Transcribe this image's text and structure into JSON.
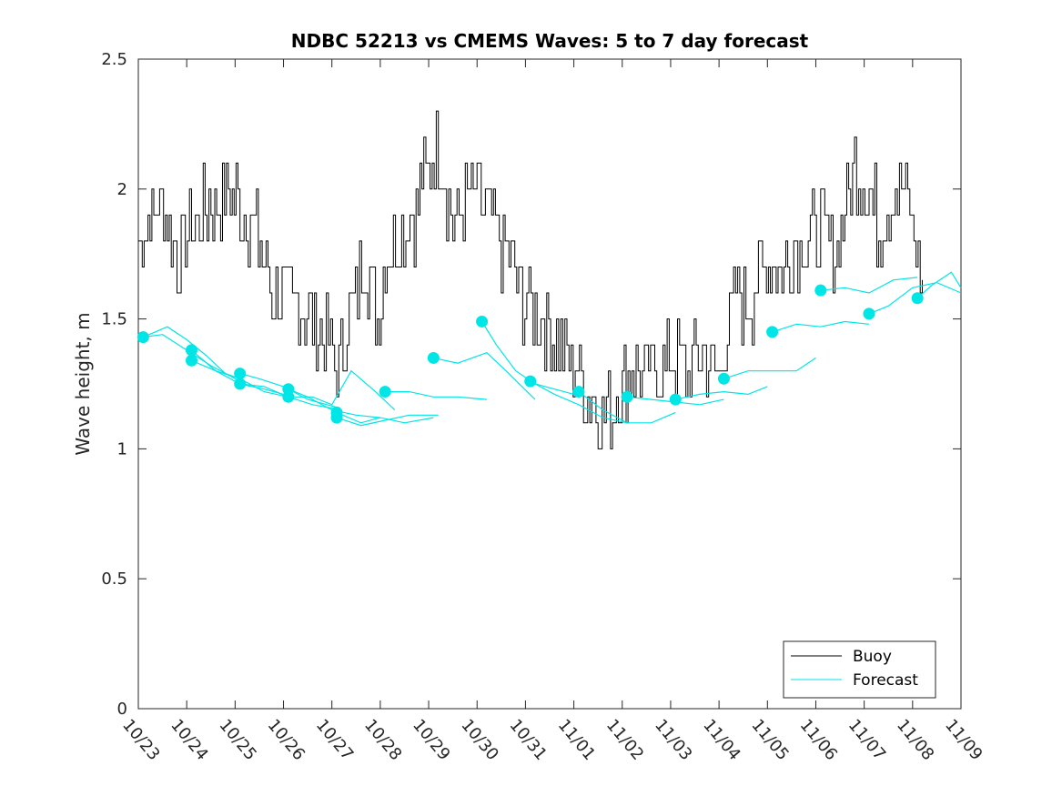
{
  "chart_data": {
    "type": "line",
    "title": "NDBC 52213 vs CMEMS Waves: 5 to 7 day forecast",
    "xlabel": "",
    "ylabel": "Wave height, m",
    "xlim": [
      0,
      17
    ],
    "ylim": [
      0,
      2.5
    ],
    "x_tick_labels": [
      "10/23",
      "10/24",
      "10/25",
      "10/26",
      "10/27",
      "10/28",
      "10/29",
      "10/30",
      "10/31",
      "11/01",
      "11/02",
      "11/03",
      "11/04",
      "11/05",
      "11/06",
      "11/07",
      "11/08",
      "11/09"
    ],
    "y_ticks": [
      0,
      0.5,
      1,
      1.5,
      2,
      2.5
    ],
    "y_tick_labels": [
      "0",
      "0.5",
      "1",
      "1.5",
      "2",
      "2.5"
    ],
    "grid": false,
    "legend": {
      "position": "bottom-right",
      "entries": [
        "Buoy",
        "Forecast"
      ]
    },
    "colors": {
      "buoy": "#000000",
      "forecast": "#00e5e5",
      "axis": "#262626"
    },
    "buoy": {
      "name": "Buoy",
      "x": [
        0,
        0.4,
        0.8,
        1.1,
        1.5,
        1.9,
        2.1,
        2.4,
        2.8,
        3.1,
        3.4,
        3.8,
        4.1,
        4.4,
        4.7,
        4.9,
        5.1,
        5.4,
        5.7,
        5.9,
        6.2,
        6.5,
        6.8,
        7.0,
        7.3,
        7.7,
        7.9,
        8.2,
        8.6,
        8.9,
        9.2,
        9.5,
        9.8,
        10.0,
        10.2,
        10.5,
        10.8,
        11.1,
        11.4,
        11.7,
        12.0,
        12.3,
        12.6,
        12.9,
        13.1,
        13.3,
        13.5,
        13.8,
        14.1,
        14.4,
        14.8,
        15.1,
        15.3,
        15.6,
        15.9,
        16.2
      ],
      "y": [
        1.8,
        1.95,
        1.75,
        1.85,
        1.95,
        2.0,
        1.95,
        1.85,
        1.6,
        1.55,
        1.55,
        1.45,
        1.3,
        1.55,
        1.75,
        1.5,
        1.7,
        1.85,
        1.9,
        2.05,
        2.15,
        1.85,
        1.95,
        2.0,
        1.85,
        1.7,
        1.6,
        1.55,
        1.45,
        1.35,
        1.25,
        1.15,
        1.15,
        1.25,
        1.3,
        1.3,
        1.3,
        1.35,
        1.3,
        1.35,
        1.3,
        1.6,
        1.55,
        1.7,
        1.75,
        1.65,
        1.8,
        1.8,
        1.85,
        1.75,
        2.1,
        2.0,
        1.85,
        2.0,
        1.95,
        1.65
      ]
    },
    "forecast": {
      "name": "Forecast",
      "runs": [
        {
          "x": [
            0.1,
            0.6,
            1.0,
            1.4,
            1.8,
            2.1
          ],
          "y": [
            1.43,
            1.47,
            1.42,
            1.36,
            1.29,
            1.27
          ]
        },
        {
          "x": [
            0.1,
            0.5,
            1.0,
            1.5,
            2.0,
            2.3
          ],
          "y": [
            1.43,
            1.44,
            1.38,
            1.32,
            1.27,
            1.24
          ]
        },
        {
          "x": [
            1.1,
            1.6,
            2.1,
            2.6,
            3.0
          ],
          "y": [
            1.38,
            1.3,
            1.25,
            1.23,
            1.21
          ]
        },
        {
          "x": [
            1.1,
            1.6,
            2.1,
            2.6,
            3.1
          ],
          "y": [
            1.34,
            1.3,
            1.27,
            1.22,
            1.2
          ]
        },
        {
          "x": [
            2.1,
            2.5,
            3.0,
            3.5,
            4.1
          ],
          "y": [
            1.29,
            1.27,
            1.24,
            1.19,
            1.16
          ]
        },
        {
          "x": [
            2.1,
            2.6,
            3.1,
            3.6,
            4.2
          ],
          "y": [
            1.25,
            1.24,
            1.2,
            1.17,
            1.15
          ]
        },
        {
          "x": [
            3.1,
            3.5,
            4.0,
            4.5,
            5.0
          ],
          "y": [
            1.23,
            1.2,
            1.15,
            1.13,
            1.12
          ]
        },
        {
          "x": [
            3.1,
            3.6,
            4.0,
            4.4,
            4.9,
            5.3
          ],
          "y": [
            1.2,
            1.2,
            1.17,
            1.3,
            1.22,
            1.15
          ]
        },
        {
          "x": [
            4.1,
            4.6,
            5.0,
            5.5,
            6.1
          ],
          "y": [
            1.14,
            1.1,
            1.12,
            1.1,
            1.12
          ]
        },
        {
          "x": [
            4.1,
            4.6,
            5.1,
            5.6,
            6.2
          ],
          "y": [
            1.12,
            1.09,
            1.11,
            1.13,
            1.13
          ]
        },
        {
          "x": [
            5.1,
            5.6,
            6.1,
            6.6,
            7.2
          ],
          "y": [
            1.22,
            1.22,
            1.2,
            1.2,
            1.19
          ]
        },
        {
          "x": [
            6.1,
            6.6,
            7.2,
            7.6,
            8.2
          ],
          "y": [
            1.35,
            1.33,
            1.37,
            1.3,
            1.19
          ]
        },
        {
          "x": [
            7.1,
            7.4,
            7.8,
            8.2,
            9.0
          ],
          "y": [
            1.49,
            1.4,
            1.3,
            1.25,
            1.21
          ]
        },
        {
          "x": [
            8.1,
            8.6,
            9.1,
            9.6,
            10.1
          ],
          "y": [
            1.26,
            1.21,
            1.17,
            1.12,
            1.1
          ]
        },
        {
          "x": [
            9.1,
            9.6,
            10.1,
            10.6,
            11.1
          ],
          "y": [
            1.22,
            1.15,
            1.1,
            1.1,
            1.14
          ]
        },
        {
          "x": [
            10.1,
            10.6,
            11.1,
            11.6,
            12.1
          ],
          "y": [
            1.2,
            1.19,
            1.18,
            1.17,
            1.19
          ]
        },
        {
          "x": [
            11.1,
            11.6,
            12.1,
            12.6,
            13.0
          ],
          "y": [
            1.19,
            1.21,
            1.22,
            1.21,
            1.24
          ]
        },
        {
          "x": [
            12.1,
            12.6,
            13.1,
            13.6,
            14.0
          ],
          "y": [
            1.27,
            1.3,
            1.3,
            1.3,
            1.35
          ]
        },
        {
          "x": [
            13.1,
            13.6,
            14.1,
            14.6,
            15.1
          ],
          "y": [
            1.45,
            1.48,
            1.47,
            1.49,
            1.48
          ]
        },
        {
          "x": [
            14.1,
            14.6,
            15.1,
            15.6,
            16.1
          ],
          "y": [
            1.61,
            1.62,
            1.6,
            1.65,
            1.66
          ]
        },
        {
          "x": [
            15.1,
            15.5,
            16.0,
            16.5,
            17.0
          ],
          "y": [
            1.52,
            1.55,
            1.62,
            1.64,
            1.6
          ]
        },
        {
          "x": [
            16.1,
            16.4,
            16.8,
            17.0
          ],
          "y": [
            1.58,
            1.63,
            1.68,
            1.62
          ]
        }
      ],
      "start_markers": {
        "x": [
          0.1,
          1.1,
          1.1,
          2.1,
          2.1,
          3.1,
          3.1,
          4.1,
          4.1,
          5.1,
          6.1,
          7.1,
          8.1,
          9.1,
          10.1,
          11.1,
          12.1,
          13.1,
          14.1,
          15.1,
          16.1
        ],
        "y": [
          1.43,
          1.38,
          1.34,
          1.29,
          1.25,
          1.23,
          1.2,
          1.14,
          1.12,
          1.22,
          1.35,
          1.49,
          1.26,
          1.22,
          1.2,
          1.19,
          1.27,
          1.45,
          1.61,
          1.52,
          1.58
        ]
      }
    }
  }
}
